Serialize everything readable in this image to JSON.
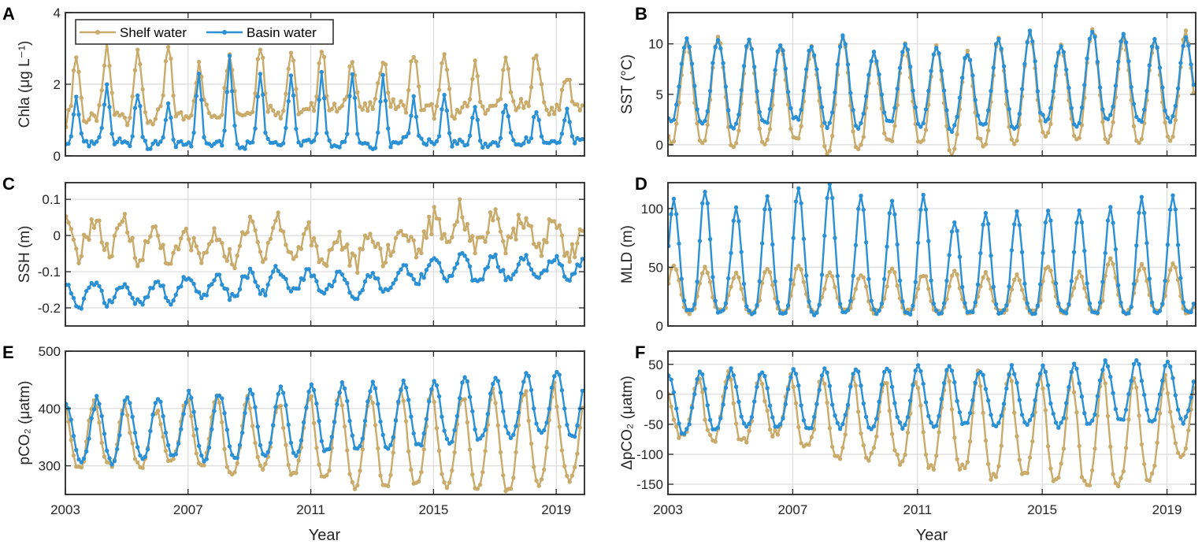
{
  "legend": {
    "shelf": "Shelf water",
    "basin": "Basin water"
  },
  "colors": {
    "shelf": "#c9ab6b",
    "basin": "#2b90d4",
    "grid": "#dcdcdc",
    "axis": "#262626"
  },
  "xlabel": "Year",
  "chart_data": [
    {
      "panel": "A",
      "type": "line",
      "ylabel": "Chla (μg L⁻¹)",
      "ylim": [
        0,
        4
      ],
      "yticks": [
        0,
        2,
        4
      ],
      "xlim": [
        2003,
        2019.92
      ],
      "xticks": [
        2003,
        2007,
        2011,
        2015,
        2019
      ],
      "show_xticklabels": false,
      "legend": "top-left",
      "years": [
        2003,
        2004,
        2005,
        2006,
        2007,
        2008,
        2009,
        2010,
        2011,
        2012,
        2013,
        2014,
        2015,
        2016,
        2017,
        2018,
        2019
      ],
      "series": [
        {
          "name": "Shelf water",
          "peak_month": 4,
          "sharpness": 4,
          "noise": 0.2,
          "peaks": [
            2.8,
            3.0,
            3.1,
            3.0,
            2.5,
            3.0,
            3.1,
            2.9,
            3.0,
            2.8,
            2.8,
            2.9,
            2.8,
            2.5,
            2.6,
            3.0,
            2.2
          ],
          "troughs": [
            1.0,
            1.1,
            1.0,
            1.1,
            1.2,
            1.2,
            1.3,
            1.2,
            1.3,
            1.3,
            1.4,
            1.3,
            1.2,
            1.3,
            1.4,
            1.3,
            1.4
          ]
        },
        {
          "name": "Basin water",
          "peak_month": 4,
          "sharpness": 6,
          "noise": 0.12,
          "peaks": [
            1.7,
            2.0,
            1.8,
            1.5,
            2.2,
            2.7,
            2.3,
            2.2,
            2.3,
            2.2,
            2.3,
            1.6,
            1.7,
            1.3,
            1.5,
            1.3,
            1.2
          ],
          "troughs": [
            0.3,
            0.4,
            0.3,
            0.35,
            0.3,
            0.3,
            0.4,
            0.35,
            0.3,
            0.35,
            0.3,
            0.4,
            0.35,
            0.3,
            0.35,
            0.4,
            0.4
          ]
        }
      ]
    },
    {
      "panel": "B",
      "type": "line",
      "ylabel": "SST (°C)",
      "ylim": [
        -1.1,
        13.1
      ],
      "yticks": [
        0,
        5,
        10
      ],
      "xlim": [
        2003,
        2019.92
      ],
      "xticks": [
        2003,
        2007,
        2011,
        2015,
        2019
      ],
      "show_xticklabels": false,
      "years": [
        2003,
        2004,
        2005,
        2006,
        2007,
        2008,
        2009,
        2010,
        2011,
        2012,
        2013,
        2014,
        2015,
        2016,
        2017,
        2018,
        2019
      ],
      "series": [
        {
          "name": "Shelf water",
          "peak_month": 7,
          "sharpness": 1.3,
          "noise": 0.3,
          "peaks": [
            10.2,
            10.8,
            10.3,
            9.8,
            9.5,
            10.6,
            9.0,
            9.8,
            9.6,
            9.2,
            10.4,
            11.0,
            9.9,
            11.5,
            10.5,
            10.2,
            11.1
          ],
          "troughs": [
            0.3,
            0.3,
            -0.2,
            0.0,
            0.5,
            -0.7,
            -0.5,
            0.3,
            0.1,
            -0.9,
            0.0,
            0.3,
            0.8,
            0.4,
            0.3,
            0.4,
            0.6
          ]
        },
        {
          "name": "Basin water",
          "peak_month": 7,
          "sharpness": 1.3,
          "noise": 0.25,
          "peaks": [
            10.5,
            10.5,
            10.4,
            10.0,
            9.7,
            10.6,
            9.1,
            10.1,
            9.8,
            9.0,
            10.5,
            11.2,
            10.0,
            11.4,
            10.8,
            10.3,
            10.4
          ],
          "troughs": [
            2.4,
            2.2,
            1.8,
            2.2,
            2.5,
            1.8,
            1.8,
            2.2,
            2.0,
            1.5,
            2.0,
            1.5,
            2.5,
            2.0,
            2.5,
            2.3,
            2.5
          ]
        }
      ]
    },
    {
      "panel": "C",
      "type": "line",
      "ylabel": "SSH (m)",
      "ylim": [
        -0.25,
        0.146
      ],
      "yticks": [
        -0.2,
        -0.1,
        0,
        0.1
      ],
      "xlim": [
        2003,
        2019.92
      ],
      "xticks": [
        2003,
        2007,
        2011,
        2015,
        2019
      ],
      "show_xticklabels": false,
      "years": [
        2003,
        2004,
        2005,
        2006,
        2007,
        2008,
        2009,
        2010,
        2011,
        2012,
        2013,
        2014,
        2015,
        2016,
        2017,
        2018,
        2019
      ],
      "series": [
        {
          "name": "Shelf water",
          "peak_month": 11,
          "sharpness": 1,
          "noise": 0.03,
          "peaks": [
            0.04,
            0.04,
            0.02,
            0.0,
            0.0,
            0.0,
            0.06,
            0.02,
            0.0,
            -0.01,
            0.0,
            0.03,
            0.08,
            0.04,
            0.05,
            0.04,
            0.03
          ],
          "troughs": [
            -0.05,
            -0.05,
            -0.06,
            -0.07,
            -0.06,
            -0.07,
            -0.05,
            -0.06,
            -0.07,
            -0.08,
            -0.06,
            -0.04,
            -0.01,
            -0.03,
            -0.03,
            -0.04,
            -0.05
          ]
        },
        {
          "name": "Basin water",
          "peak_month": 11,
          "sharpness": 1,
          "noise": 0.012,
          "peaks": [
            -0.13,
            -0.13,
            -0.14,
            -0.12,
            -0.11,
            -0.11,
            -0.09,
            -0.1,
            -0.1,
            -0.11,
            -0.1,
            -0.08,
            -0.05,
            -0.06,
            -0.06,
            -0.06,
            -0.06
          ],
          "troughs": [
            -0.2,
            -0.19,
            -0.19,
            -0.18,
            -0.17,
            -0.17,
            -0.16,
            -0.15,
            -0.16,
            -0.17,
            -0.15,
            -0.13,
            -0.12,
            -0.13,
            -0.12,
            -0.11,
            -0.12
          ]
        }
      ]
    },
    {
      "panel": "D",
      "type": "line",
      "ylabel": "MLD (m)",
      "ylim": [
        0,
        122
      ],
      "yticks": [
        0,
        50,
        100
      ],
      "xlim": [
        2003,
        2019.92
      ],
      "xticks": [
        2003,
        2007,
        2011,
        2015,
        2019
      ],
      "show_xticklabels": false,
      "years": [
        2003,
        2004,
        2005,
        2006,
        2007,
        2008,
        2009,
        2010,
        2011,
        2012,
        2013,
        2014,
        2015,
        2016,
        2017,
        2018,
        2019
      ],
      "series": [
        {
          "name": "Shelf water",
          "peak_month": 2,
          "sharpness": 1.6,
          "noise": 2,
          "peaks": [
            52,
            50,
            45,
            48,
            52,
            45,
            44,
            48,
            44,
            46,
            44,
            43,
            52,
            45,
            58,
            52,
            52
          ],
          "troughs": [
            12,
            12,
            12,
            12,
            12,
            12,
            12,
            12,
            12,
            12,
            12,
            12,
            12,
            12,
            12,
            12,
            12
          ]
        },
        {
          "name": "Basin water",
          "peak_month": 2,
          "sharpness": 1.8,
          "noise": 2,
          "peaks": [
            108,
            115,
            100,
            110,
            118,
            120,
            110,
            108,
            112,
            90,
            95,
            98,
            100,
            98,
            100,
            108,
            110
          ],
          "troughs": [
            12,
            11,
            11,
            11,
            11,
            11,
            12,
            11,
            11,
            12,
            11,
            11,
            11,
            12,
            11,
            11,
            11
          ]
        }
      ]
    },
    {
      "panel": "E",
      "type": "line",
      "ylabel": "pCO₂ (μatm)",
      "ylim": [
        250,
        500
      ],
      "yticks": [
        300,
        400,
        500
      ],
      "xlim": [
        2003,
        2019.92
      ],
      "xticks": [
        2003,
        2007,
        2011,
        2015,
        2019
      ],
      "show_xticklabels": true,
      "xticklabels": [
        "2003",
        "2007",
        "2011",
        "2015",
        "2019"
      ],
      "years": [
        2003,
        2004,
        2005,
        2006,
        2007,
        2008,
        2009,
        2010,
        2011,
        2012,
        2013,
        2014,
        2015,
        2016,
        2017,
        2018,
        2019
      ],
      "series": [
        {
          "name": "Shelf water",
          "peak_month": 11,
          "sharpness": 1.4,
          "noise": 6,
          "peaks": [
            415,
            410,
            395,
            410,
            425,
            420,
            405,
            415,
            430,
            425,
            430,
            425,
            420,
            430,
            425,
            440,
            410
          ],
          "troughs": [
            295,
            300,
            300,
            310,
            300,
            280,
            295,
            285,
            275,
            265,
            265,
            265,
            265,
            260,
            255,
            270,
            275
          ]
        },
        {
          "name": "Basin water",
          "peak_month": 0,
          "sharpness": 1.2,
          "noise": 4,
          "peaks": [
            410,
            420,
            418,
            420,
            428,
            425,
            432,
            440,
            440,
            442,
            445,
            445,
            450,
            455,
            455,
            465,
            465
          ],
          "troughs": [
            305,
            305,
            310,
            315,
            310,
            312,
            318,
            320,
            325,
            330,
            330,
            335,
            340,
            345,
            350,
            355,
            350
          ]
        }
      ]
    },
    {
      "panel": "F",
      "type": "line",
      "ylabel": "ΔpCO₂ (μatm)",
      "ylim": [
        -167,
        72
      ],
      "yticks": [
        -150,
        -100,
        -50,
        0,
        50
      ],
      "xlim": [
        2003,
        2019.92
      ],
      "xticks": [
        2003,
        2007,
        2011,
        2015,
        2019
      ],
      "show_xticklabels": true,
      "xticklabels": [
        "2003",
        "2007",
        "2011",
        "2015",
        "2019"
      ],
      "years": [
        2003,
        2004,
        2005,
        2006,
        2007,
        2008,
        2009,
        2010,
        2011,
        2012,
        2013,
        2014,
        2015,
        2016,
        2017,
        2018,
        2019
      ],
      "series": [
        {
          "name": "Shelf water",
          "peak_month": 11,
          "sharpness": 1.6,
          "noise": 8,
          "peaks": [
            15,
            40,
            30,
            30,
            30,
            35,
            20,
            25,
            30,
            35,
            35,
            35,
            30,
            30,
            30,
            30,
            20
          ],
          "troughs": [
            -70,
            -75,
            -80,
            -65,
            -90,
            -110,
            -105,
            -110,
            -120,
            -125,
            -140,
            -130,
            -140,
            -150,
            -150,
            -140,
            -100
          ]
        },
        {
          "name": "Basin water",
          "peak_month": 0,
          "sharpness": 1.2,
          "noise": 4,
          "peaks": [
            30,
            38,
            42,
            35,
            40,
            40,
            45,
            45,
            45,
            45,
            40,
            45,
            45,
            50,
            55,
            55,
            52
          ],
          "troughs": [
            -65,
            -60,
            -55,
            -55,
            -60,
            -55,
            -60,
            -55,
            -55,
            -50,
            -55,
            -50,
            -55,
            -50,
            -45,
            -45,
            -45
          ]
        }
      ]
    }
  ]
}
